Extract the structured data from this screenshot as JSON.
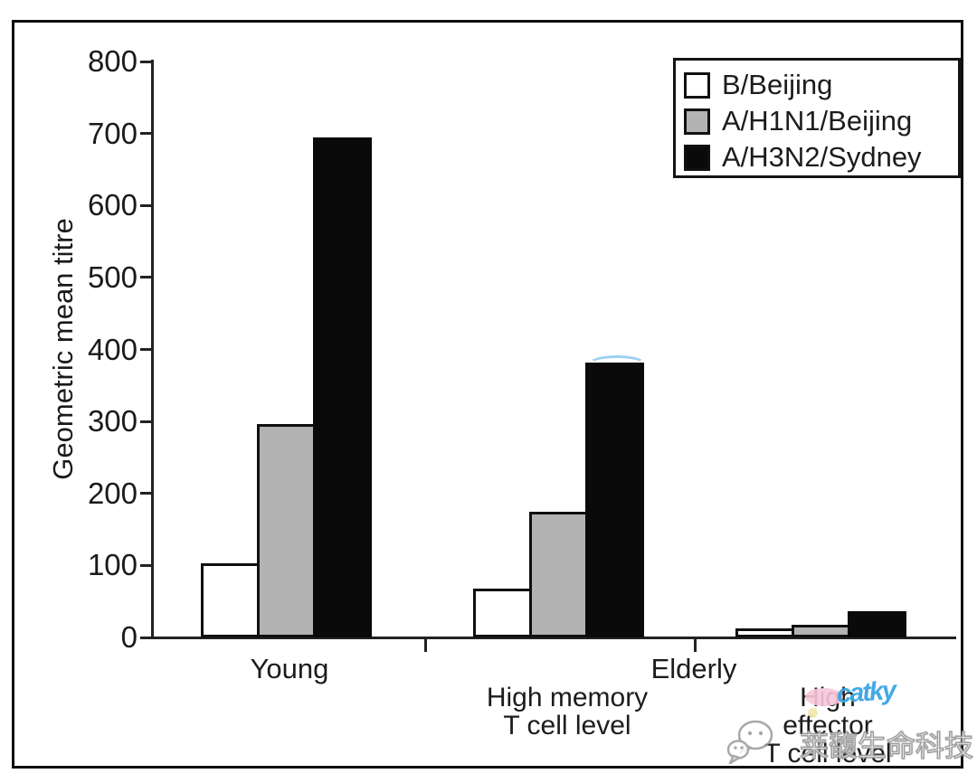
{
  "chart_data": {
    "type": "bar",
    "title": "",
    "xlabel": "",
    "ylabel": "Geometric mean titre",
    "ylim": [
      0,
      800
    ],
    "yticks": [
      0,
      100,
      200,
      300,
      400,
      500,
      600,
      700,
      800
    ],
    "grid": false,
    "legend_position": "top-right",
    "categories": [
      "Young",
      "Elderly - High memory T cell level",
      "Elderly - High effector T cell level"
    ],
    "x_axis_row1_labels": [
      "Young",
      "Elderly"
    ],
    "x_axis_row2_labels": [
      "High memory\nT cell level",
      "High effector\nT cell level"
    ],
    "series": [
      {
        "name": "B/Beijing",
        "color": "#ffffff",
        "values": [
          103,
          68,
          12
        ]
      },
      {
        "name": "A/H1N1/Beijing",
        "color": "#b3b3b3",
        "values": [
          297,
          175,
          17
        ]
      },
      {
        "name": "A/H3N2/Sydney",
        "color": "#0a0a0a",
        "values": [
          695,
          382,
          37
        ]
      }
    ]
  },
  "watermark": {
    "cn_text": "莱馥生命科技",
    "blue_text": "catky",
    "icon": "wechat-chat-bubbles-icon"
  }
}
